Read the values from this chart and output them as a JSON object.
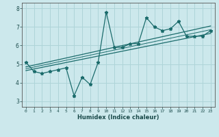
{
  "xlabel": "Humidex (Indice chaleur)",
  "ylabel": "",
  "bg_color": "#cce8ec",
  "grid_color": "#aed4d8",
  "line_color": "#1a6b6b",
  "xlim": [
    -0.5,
    23.5
  ],
  "ylim": [
    2.7,
    8.3
  ],
  "xticks": [
    0,
    1,
    2,
    3,
    4,
    5,
    6,
    7,
    8,
    9,
    10,
    11,
    12,
    13,
    14,
    15,
    16,
    17,
    18,
    19,
    20,
    21,
    22,
    23
  ],
  "yticks": [
    3,
    4,
    5,
    6,
    7,
    8
  ],
  "series1_x": [
    0,
    1,
    2,
    3,
    4,
    5,
    6,
    7,
    8,
    9,
    10,
    11,
    12,
    13,
    14,
    15,
    16,
    17,
    18,
    19,
    20,
    21,
    22,
    23
  ],
  "series1_y": [
    5.1,
    4.6,
    4.5,
    4.6,
    4.7,
    4.8,
    3.3,
    4.3,
    3.9,
    5.1,
    7.8,
    5.9,
    5.9,
    6.1,
    6.1,
    7.5,
    7.0,
    6.8,
    6.9,
    7.3,
    6.5,
    6.5,
    6.5,
    6.8
  ],
  "series2_x": [
    0,
    23
  ],
  "series2_y": [
    4.65,
    6.65
  ],
  "series3_x": [
    0,
    23
  ],
  "series3_y": [
    4.85,
    7.05
  ],
  "series4_x": [
    0,
    23
  ],
  "series4_y": [
    4.75,
    6.85
  ]
}
